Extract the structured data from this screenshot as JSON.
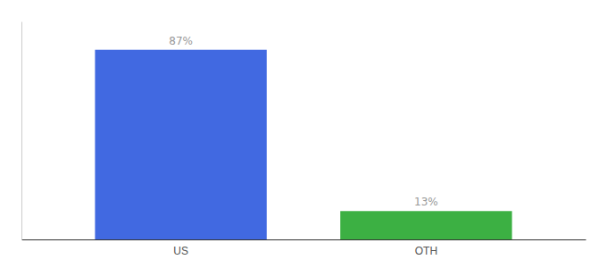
{
  "chart_data": {
    "type": "bar",
    "categories": [
      "US",
      "OTH"
    ],
    "values": [
      87,
      13
    ],
    "value_labels": [
      "87%",
      "13%"
    ],
    "colors": [
      "#4169E1",
      "#3CB043"
    ],
    "ylim": [
      0,
      100
    ],
    "data_labels": true,
    "tick_labels": "x",
    "grid": false
  }
}
